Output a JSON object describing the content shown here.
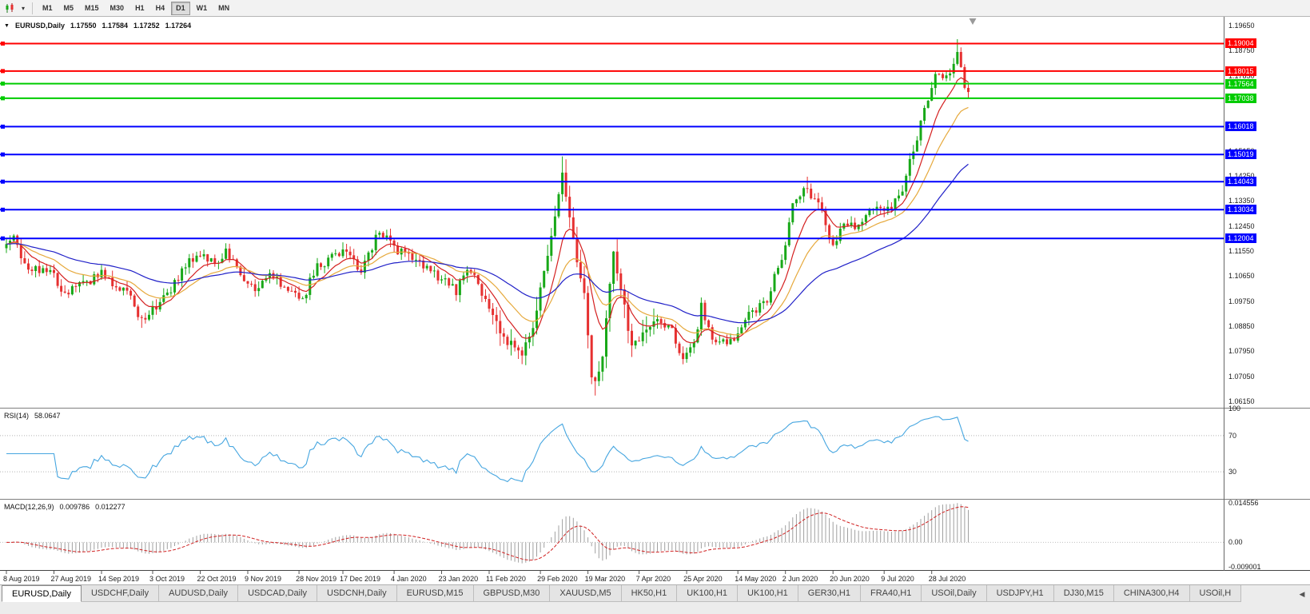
{
  "toolbar": {
    "timeframes": [
      "M1",
      "M5",
      "M15",
      "M30",
      "H1",
      "H4",
      "D1",
      "W1",
      "MN"
    ],
    "active_timeframe": "D1"
  },
  "chart_header": {
    "dropdown_icon": "▼",
    "symbol_period": "EURUSD,Daily",
    "open": "1.17550",
    "high": "1.17584",
    "low": "1.17252",
    "close": "1.17264"
  },
  "indicators": {
    "rsi": {
      "label": "RSI(14)",
      "value": "58.0647"
    },
    "macd": {
      "label": "MACD(12,26,9)",
      "value1": "0.009786",
      "value2": "0.012277"
    }
  },
  "tabs": {
    "items": [
      "EURUSD,Daily",
      "USDCHF,Daily",
      "AUDUSD,Daily",
      "USDCAD,Daily",
      "USDCNH,Daily",
      "EURUSD,M15",
      "GBPUSD,M30",
      "XAUUSD,M5",
      "HK50,H1",
      "UK100,H1",
      "UK100,H1",
      "GER30,H1",
      "FRA40,H1",
      "USOil,Daily",
      "USDJPY,H1",
      "DJ30,M15",
      "CHINA300,H4",
      "USOil,H"
    ],
    "active_index": 0,
    "scroll_left_icon": "◀"
  },
  "colors": {
    "candle_up": "#18a818",
    "candle_down": "#e63030",
    "ma_fast": "#d42020",
    "ma_mid": "#e6a93c",
    "ma_slow": "#2020c8",
    "rsi_line": "#46a6e0",
    "macd_hist": "#a0a0a0",
    "macd_signal": "#d02020",
    "line_red": "#ff0000",
    "line_green": "#00cc00",
    "line_blue": "#0000ff"
  },
  "chart_data": {
    "type": "candlestick+indicators",
    "symbol": "EURUSD",
    "period": "Daily",
    "ylim": [
      1.0592,
      1.19965
    ],
    "y_ticks": [
      1.1965,
      1.1875,
      1.1785,
      1.1695,
      1.1605,
      1.1515,
      1.1425,
      1.1335,
      1.1245,
      1.1155,
      1.1065,
      1.0975,
      1.0885,
      1.0795,
      1.0705,
      1.0615
    ],
    "x_ticks": [
      {
        "label": "8 Aug 2019",
        "i": 0
      },
      {
        "label": "27 Aug 2019",
        "i": 13
      },
      {
        "label": "14 Sep 2019",
        "i": 26
      },
      {
        "label": "3 Oct 2019",
        "i": 40
      },
      {
        "label": "22 Oct 2019",
        "i": 53
      },
      {
        "label": "9 Nov 2019",
        "i": 66
      },
      {
        "label": "28 Nov 2019",
        "i": 80
      },
      {
        "label": "17 Dec 2019",
        "i": 92
      },
      {
        "label": "4 Jan 2020",
        "i": 106
      },
      {
        "label": "23 Jan 2020",
        "i": 119
      },
      {
        "label": "11 Feb 2020",
        "i": 132
      },
      {
        "label": "29 Feb 2020",
        "i": 146
      },
      {
        "label": "19 Mar 2020",
        "i": 159
      },
      {
        "label": "7 Apr 2020",
        "i": 173
      },
      {
        "label": "25 Apr 2020",
        "i": 186
      },
      {
        "label": "14 May 2020",
        "i": 200
      },
      {
        "label": "2 Jun 2020",
        "i": 213
      },
      {
        "label": "20 Jun 2020",
        "i": 226
      },
      {
        "label": "9 Jul 2020",
        "i": 240
      },
      {
        "label": "28 Jul 2020",
        "i": 253
      }
    ],
    "lines": [
      {
        "price": 1.19004,
        "color": "#ff0000",
        "width": 2
      },
      {
        "price": 1.18015,
        "color": "#ff0000",
        "width": 2
      },
      {
        "price": 1.17564,
        "color": "#00cc00",
        "width": 2
      },
      {
        "price": 1.17038,
        "color": "#00cc00",
        "width": 2
      },
      {
        "price": 1.16018,
        "color": "#0000ff",
        "width": 2
      },
      {
        "price": 1.15019,
        "color": "#0000ff",
        "width": 2
      },
      {
        "price": 1.14043,
        "color": "#0000ff",
        "width": 2
      },
      {
        "price": 1.13034,
        "color": "#0000ff",
        "width": 2
      },
      {
        "price": 1.12004,
        "color": "#0000ff",
        "width": 2
      }
    ],
    "candles": {
      "count": 264,
      "seed": 20200811,
      "noise": 0.0017,
      "wick": 0.0026,
      "vol_zone": {
        "from": 133,
        "to": 178,
        "mult": 1.9
      },
      "anchors": [
        [
          0,
          1.118
        ],
        [
          2,
          1.1212
        ],
        [
          5,
          1.1109
        ],
        [
          9,
          1.1085
        ],
        [
          12,
          1.1101
        ],
        [
          16,
          1.0989
        ],
        [
          19,
          1.1034
        ],
        [
          23,
          1.1047
        ],
        [
          26,
          1.1073
        ],
        [
          29,
          1.1031
        ],
        [
          33,
          1.102
        ],
        [
          37,
          1.0899
        ],
        [
          39,
          1.0932
        ],
        [
          42,
          1.097
        ],
        [
          46,
          1.104
        ],
        [
          50,
          1.1125
        ],
        [
          54,
          1.1133
        ],
        [
          58,
          1.1112
        ],
        [
          60,
          1.1152
        ],
        [
          64,
          1.1068
        ],
        [
          68,
          1.101
        ],
        [
          72,
          1.1072
        ],
        [
          76,
          1.1021
        ],
        [
          81,
          1.0981
        ],
        [
          85,
          1.1104
        ],
        [
          89,
          1.1129
        ],
        [
          93,
          1.1151
        ],
        [
          97,
          1.1087
        ],
        [
          101,
          1.1199
        ],
        [
          103,
          1.1212
        ],
        [
          107,
          1.1153
        ],
        [
          111,
          1.1134
        ],
        [
          115,
          1.109
        ],
        [
          119,
          1.1055
        ],
        [
          123,
          1.101
        ],
        [
          126,
          1.1093
        ],
        [
          129,
          1.1043
        ],
        [
          133,
          1.091
        ],
        [
          137,
          1.0831
        ],
        [
          141,
          1.0785
        ],
        [
          144,
          1.0882
        ],
        [
          146,
          1.1026
        ],
        [
          148,
          1.1134
        ],
        [
          150,
          1.1285
        ],
        [
          152,
          1.1444
        ],
        [
          154,
          1.1271
        ],
        [
          156,
          1.1106
        ],
        [
          158,
          1.0998
        ],
        [
          160,
          1.0693
        ],
        [
          161,
          1.0689
        ],
        [
          163,
          1.0786
        ],
        [
          166,
          1.1141
        ],
        [
          168,
          1.1031
        ],
        [
          171,
          1.0808
        ],
        [
          174,
          1.0858
        ],
        [
          177,
          1.0914
        ],
        [
          179,
          1.091
        ],
        [
          182,
          1.0863
        ],
        [
          185,
          1.0776
        ],
        [
          188,
          1.0822
        ],
        [
          190,
          1.0955
        ],
        [
          193,
          1.0837
        ],
        [
          196,
          1.0839
        ],
        [
          199,
          1.0816
        ],
        [
          202,
          1.0915
        ],
        [
          205,
          1.0949
        ],
        [
          208,
          1.0983
        ],
        [
          211,
          1.1101
        ],
        [
          213,
          1.1173
        ],
        [
          215,
          1.1337
        ],
        [
          219,
          1.1373
        ],
        [
          222,
          1.1324
        ],
        [
          226,
          1.1177
        ],
        [
          229,
          1.1251
        ],
        [
          233,
          1.1234
        ],
        [
          237,
          1.1309
        ],
        [
          241,
          1.13
        ],
        [
          245,
          1.1384
        ],
        [
          248,
          1.1525
        ],
        [
          251,
          1.1656
        ],
        [
          254,
          1.1791
        ],
        [
          256,
          1.1776
        ],
        [
          258,
          1.1803
        ],
        [
          260,
          1.1876
        ],
        [
          262,
          1.1738
        ],
        [
          263,
          1.17264
        ]
      ],
      "spikes": [
        {
          "i": 37,
          "low": 1.0879
        },
        {
          "i": 141,
          "low": 1.0778
        },
        {
          "i": 152,
          "high": 1.1495
        },
        {
          "i": 161,
          "low": 1.0636
        },
        {
          "i": 219,
          "high": 1.1422
        },
        {
          "i": 260,
          "high": 1.1916
        }
      ]
    },
    "mas": [
      {
        "period": 9,
        "color": "#d42020"
      },
      {
        "period": 20,
        "color": "#e6a93c"
      },
      {
        "period": 50,
        "color": "#2020c8"
      }
    ],
    "rsi": {
      "period": 14,
      "levels": [
        70,
        30
      ],
      "ticks": [
        100,
        70,
        30
      ],
      "color": "#46a6e0"
    },
    "macd": {
      "fast": 12,
      "slow": 26,
      "signal": 9,
      "ylim": [
        -0.010179,
        0.015734
      ],
      "ticks": [
        {
          "label": "0.014556",
          "v": 0.014556
        },
        {
          "label": "0.00",
          "v": 0
        },
        {
          "label": "-0.009001",
          "v": -0.009001
        }
      ]
    }
  }
}
